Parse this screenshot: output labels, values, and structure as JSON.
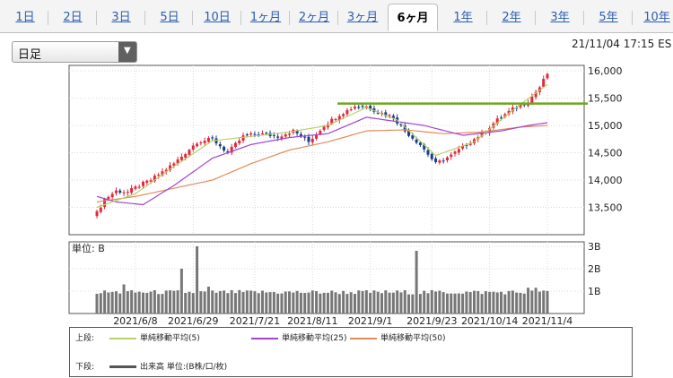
{
  "tabs": [
    {
      "label": "1日",
      "active": false
    },
    {
      "label": "2日",
      "active": false
    },
    {
      "label": "3日",
      "active": false
    },
    {
      "label": "5日",
      "active": false
    },
    {
      "label": "10日",
      "active": false
    },
    {
      "label": "1ヶ月",
      "active": false
    },
    {
      "label": "2ヶ月",
      "active": false
    },
    {
      "label": "3ヶ月",
      "active": false
    },
    {
      "label": "6ヶ月",
      "active": true
    },
    {
      "label": "1年",
      "active": false
    },
    {
      "label": "2年",
      "active": false
    },
    {
      "label": "3年",
      "active": false
    },
    {
      "label": "5年",
      "active": false
    },
    {
      "label": "10年",
      "active": false
    }
  ],
  "period_select": {
    "value": "日足"
  },
  "timestamp": "21/11/04 17:15 ES",
  "chart_data": {
    "type": "candlestick",
    "price_axis": {
      "ticks": [
        13500,
        14000,
        14500,
        15000,
        15500,
        16000
      ],
      "labels": [
        "13,500",
        "14,000",
        "14,500",
        "15,000",
        "15,500",
        "16,000"
      ],
      "range": [
        13000,
        16100
      ]
    },
    "volume_axis": {
      "unit_label": "単位: B",
      "ticks": [
        1,
        2,
        3
      ],
      "labels": [
        "1B",
        "2B",
        "3B"
      ],
      "range": [
        0,
        3.2
      ]
    },
    "x_labels": [
      {
        "label": "2021/6/8",
        "i": 10
      },
      {
        "label": "2021/6/29",
        "i": 25
      },
      {
        "label": "2021/7/21",
        "i": 41
      },
      {
        "label": "2021/8/11",
        "i": 56
      },
      {
        "label": "2021/9/1",
        "i": 71
      },
      {
        "label": "2021/9/23",
        "i": 87
      },
      {
        "label": "2021/10/14",
        "i": 102
      },
      {
        "label": "2021/11/4",
        "i": 117
      }
    ],
    "horizontal_line": {
      "value": 15400,
      "color": "#6ba81e"
    },
    "series_colors": {
      "up": "#e2283c",
      "down": "#1a3c8c",
      "ma5": "#b9cf6a",
      "ma25": "#a045d2",
      "ma50": "#e28a5a",
      "volume": "#777777"
    },
    "close_anchors": [
      [
        0,
        13400
      ],
      [
        2,
        13650
      ],
      [
        5,
        13800
      ],
      [
        8,
        13780
      ],
      [
        11,
        13900
      ],
      [
        14,
        14000
      ],
      [
        17,
        14150
      ],
      [
        20,
        14300
      ],
      [
        23,
        14500
      ],
      [
        26,
        14700
      ],
      [
        30,
        14750
      ],
      [
        34,
        14500
      ],
      [
        38,
        14800
      ],
      [
        42,
        14850
      ],
      [
        47,
        14800
      ],
      [
        51,
        14900
      ],
      [
        55,
        14700
      ],
      [
        59,
        15000
      ],
      [
        63,
        15200
      ],
      [
        67,
        15350
      ],
      [
        70,
        15350
      ],
      [
        73,
        15250
      ],
      [
        77,
        15150
      ],
      [
        80,
        14900
      ],
      [
        84,
        14650
      ],
      [
        88,
        14300
      ],
      [
        92,
        14450
      ],
      [
        96,
        14650
      ],
      [
        100,
        14850
      ],
      [
        104,
        15100
      ],
      [
        108,
        15300
      ],
      [
        112,
        15450
      ],
      [
        115,
        15700
      ],
      [
        117,
        15950
      ]
    ],
    "ma5_anchors": [
      [
        0,
        13500
      ],
      [
        10,
        13750
      ],
      [
        20,
        14250
      ],
      [
        30,
        14720
      ],
      [
        40,
        14800
      ],
      [
        50,
        14880
      ],
      [
        60,
        15000
      ],
      [
        70,
        15330
      ],
      [
        78,
        15100
      ],
      [
        88,
        14450
      ],
      [
        98,
        14700
      ],
      [
        108,
        15280
      ],
      [
        117,
        15750
      ]
    ],
    "ma25_anchors": [
      [
        0,
        13700
      ],
      [
        5,
        13600
      ],
      [
        12,
        13550
      ],
      [
        20,
        13900
      ],
      [
        30,
        14400
      ],
      [
        40,
        14650
      ],
      [
        50,
        14780
      ],
      [
        60,
        14850
      ],
      [
        70,
        15150
      ],
      [
        75,
        15100
      ],
      [
        85,
        15000
      ],
      [
        95,
        14820
      ],
      [
        105,
        14900
      ],
      [
        112,
        15000
      ],
      [
        117,
        15050
      ]
    ],
    "ma50_anchors": [
      [
        0,
        13600
      ],
      [
        10,
        13700
      ],
      [
        20,
        13850
      ],
      [
        30,
        14000
      ],
      [
        40,
        14300
      ],
      [
        50,
        14550
      ],
      [
        60,
        14700
      ],
      [
        70,
        14900
      ],
      [
        80,
        14920
      ],
      [
        90,
        14850
      ],
      [
        100,
        14880
      ],
      [
        110,
        14970
      ],
      [
        117,
        15000
      ]
    ],
    "volume_spikes": [
      [
        7,
        1.3
      ],
      [
        22,
        2.0
      ],
      [
        26,
        3.0
      ],
      [
        29,
        1.2
      ],
      [
        83,
        2.8
      ],
      [
        112,
        1.15
      ],
      [
        114,
        1.15
      ]
    ],
    "n_days": 118
  },
  "legend": {
    "upper_label": "上段:",
    "lower_label": "下段:",
    "ma5_label": "単純移動平均(5)",
    "ma25_label": "単純移動平均(25)",
    "ma50_label": "単純移動平均(50)",
    "volume_label": "出来高 単位:(B株/口/枚)"
  }
}
